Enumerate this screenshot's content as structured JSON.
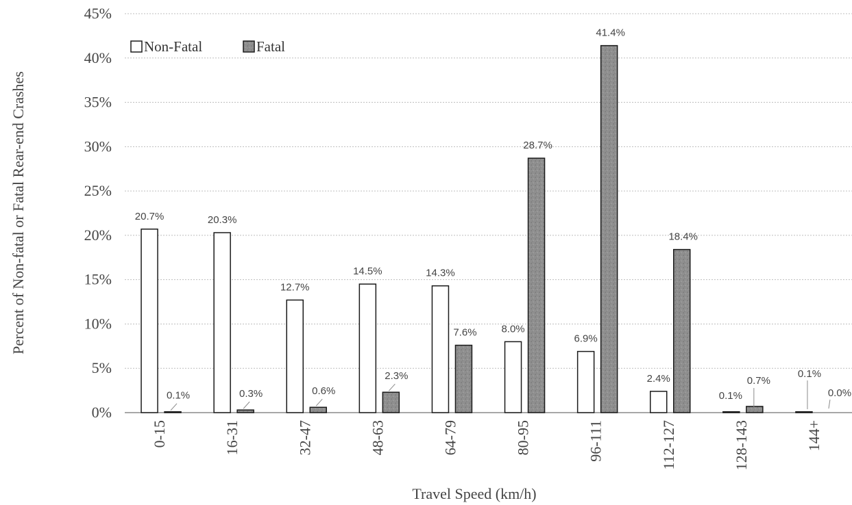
{
  "chart_data": {
    "type": "bar",
    "categories": [
      "0-15",
      "16-31",
      "32-47",
      "48-63",
      "64-79",
      "80-95",
      "96-111",
      "112-127",
      "128-143",
      "144+"
    ],
    "series": [
      {
        "name": "Non-Fatal",
        "values": [
          20.7,
          20.3,
          12.7,
          14.5,
          14.3,
          8.0,
          6.9,
          2.4,
          0.1,
          0.1
        ],
        "labels": [
          "20.7%",
          "20.3%",
          "12.7%",
          "14.5%",
          "14.3%",
          "8.0%",
          "6.9%",
          "2.4%",
          "0.1%",
          "0.1%"
        ]
      },
      {
        "name": "Fatal",
        "values": [
          0.1,
          0.3,
          0.6,
          2.3,
          7.6,
          28.7,
          41.4,
          18.4,
          0.7,
          0.0
        ],
        "labels": [
          "0.1%",
          "0.3%",
          "0.6%",
          "2.3%",
          "7.6%",
          "28.7%",
          "41.4%",
          "18.4%",
          "0.7%",
          "0.0%"
        ]
      }
    ],
    "xlabel": "Travel Speed (km/h)",
    "ylabel": "Percent of Non-fatal or Fatal Rear-end Crashes",
    "ylim": [
      0,
      45
    ],
    "yticks": [
      "0%",
      "5%",
      "10%",
      "15%",
      "20%",
      "25%",
      "30%",
      "35%",
      "40%",
      "45%"
    ],
    "grid": true,
    "legend_position": "top-left",
    "colors": {
      "Non-Fatal": "#ffffff",
      "Fatal": "#8f8f8f",
      "edge": "#1a1a1a",
      "grid": "#bdbdbd"
    }
  }
}
